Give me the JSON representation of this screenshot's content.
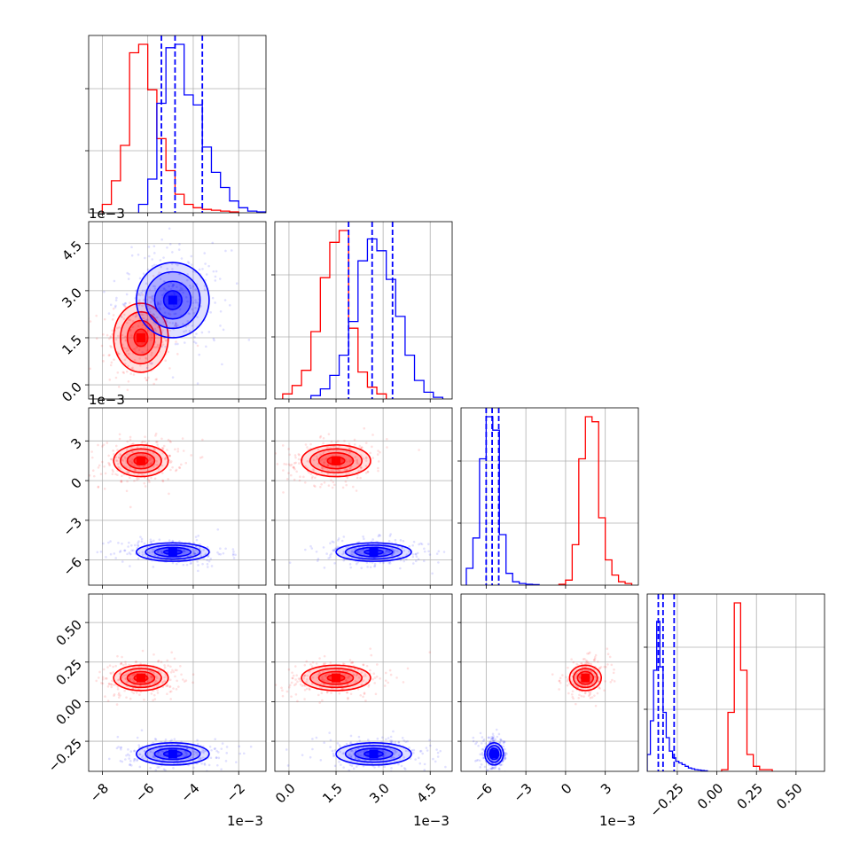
{
  "colors": {
    "red": "#ff0000",
    "blue": "#0000ff",
    "grid": "#b0b0b0",
    "axis": "#000000",
    "background": "#ffffff"
  },
  "chart_data": {
    "type": "corner",
    "grid": true,
    "n_params": 4,
    "offset_text": [
      "1e−3",
      "1e−3",
      "1e−3"
    ],
    "x_ticks": [
      [
        "−8",
        "−6",
        "−4",
        "−2"
      ],
      [
        "0.0",
        "1.5",
        "3.0",
        "4.5"
      ],
      [
        "−6",
        "−3",
        "0",
        "3"
      ],
      [
        "−0.25",
        "0.00",
        "0.25",
        "0.50"
      ]
    ],
    "y_ticks": [
      [],
      [
        "0.0",
        "1.5",
        "3.0",
        "4.5"
      ],
      [
        "−6",
        "−3",
        "0",
        "3"
      ],
      [
        "−0.25",
        "0.00",
        "0.25",
        "0.50"
      ]
    ],
    "ranges": [
      [
        -8.6,
        -0.8
      ],
      [
        -0.45,
        5.2
      ],
      [
        -7.9,
        5.5
      ],
      [
        -0.44,
        0.68
      ]
    ],
    "tick_values": [
      [
        -8,
        -6,
        -4,
        -2
      ],
      [
        0.0,
        1.5,
        3.0,
        4.5
      ],
      [
        -6,
        -3,
        0,
        3
      ],
      [
        -0.25,
        0.0,
        0.25,
        0.5
      ]
    ],
    "diag_yticks_frac": [
      0.35,
      0.7
    ],
    "series": [
      {
        "color": "red",
        "means": [
          -6.3,
          1.5,
          1.5,
          0.15
        ],
        "sigmas": [
          0.6,
          0.55,
          0.6,
          0.04
        ],
        "histograms": [
          {
            "edges": [
              -8.0,
              -7.6,
              -7.2,
              -6.8,
              -6.4,
              -6.0,
              -5.6,
              -5.2,
              -4.8,
              -4.4,
              -4.0,
              -3.6,
              -3.2,
              -2.8,
              -2.4,
              -2.0
            ],
            "counts": [
              0.05,
              0.19,
              0.4,
              0.95,
              1.0,
              0.73,
              0.44,
              0.25,
              0.11,
              0.05,
              0.03,
              0.02,
              0.015,
              0.01,
              0.005
            ]
          },
          {
            "edges": [
              -0.2,
              0.1,
              0.4,
              0.7,
              1.0,
              1.3,
              1.6,
              1.9,
              2.2,
              2.5,
              2.8,
              3.1
            ],
            "counts": [
              0.03,
              0.08,
              0.17,
              0.4,
              0.72,
              0.93,
              1.0,
              0.42,
              0.16,
              0.07,
              0.03
            ]
          },
          {
            "edges": [
              -0.5,
              0.0,
              0.5,
              1.0,
              1.5,
              2.0,
              2.5,
              3.0,
              3.5,
              4.0,
              4.5,
              5.0
            ],
            "counts": [
              0.005,
              0.03,
              0.24,
              0.75,
              1.0,
              0.97,
              0.4,
              0.15,
              0.06,
              0.02,
              0.01
            ]
          },
          {
            "edges": [
              0.03,
              0.07,
              0.11,
              0.15,
              0.19,
              0.23,
              0.27,
              0.31,
              0.35
            ],
            "counts": [
              0.01,
              0.35,
              1.0,
              0.6,
              0.1,
              0.03,
              0.01,
              0.01
            ]
          }
        ]
      },
      {
        "color": "blue",
        "means": [
          -4.9,
          2.7,
          -5.4,
          -0.33
        ],
        "sigmas": [
          0.8,
          0.6,
          0.35,
          0.035
        ],
        "quantiles": [
          [
            -5.4,
            -4.8,
            -3.6
          ],
          [
            1.9,
            2.65,
            3.3
          ],
          [
            -6.0,
            -5.55,
            -5.05
          ],
          [
            -0.37,
            -0.34,
            -0.27
          ]
        ],
        "histograms": [
          {
            "edges": [
              -6.4,
              -6.0,
              -5.6,
              -5.2,
              -4.8,
              -4.4,
              -4.0,
              -3.6,
              -3.2,
              -2.8,
              -2.4,
              -2.0,
              -1.6,
              -1.2,
              -0.8
            ],
            "counts": [
              0.05,
              0.2,
              0.65,
              0.98,
              1.0,
              0.7,
              0.64,
              0.39,
              0.24,
              0.15,
              0.07,
              0.03,
              0.01,
              0.005
            ]
          },
          {
            "edges": [
              0.7,
              1.0,
              1.3,
              1.6,
              1.9,
              2.2,
              2.5,
              2.8,
              3.1,
              3.4,
              3.7,
              4.0,
              4.3,
              4.6,
              4.9
            ],
            "counts": [
              0.02,
              0.06,
              0.14,
              0.26,
              0.46,
              0.82,
              0.95,
              0.88,
              0.71,
              0.49,
              0.26,
              0.11,
              0.04,
              0.01
            ]
          },
          {
            "edges": [
              -7.5,
              -7.0,
              -6.5,
              -6.0,
              -5.5,
              -5.0,
              -4.5,
              -4.0,
              -3.5,
              -3.0,
              -2.5,
              -2.0
            ],
            "counts": [
              0.1,
              0.28,
              0.75,
              1.0,
              0.92,
              0.3,
              0.07,
              0.02,
              0.01,
              0.005,
              0.003
            ]
          },
          {
            "edges": [
              -0.44,
              -0.42,
              -0.4,
              -0.38,
              -0.36,
              -0.34,
              -0.32,
              -0.3,
              -0.28,
              -0.26,
              -0.24,
              -0.22,
              -0.2,
              -0.18,
              -0.16,
              -0.14,
              -0.12,
              -0.1,
              -0.08,
              -0.06
            ],
            "counts": [
              0.1,
              0.3,
              0.6,
              0.89,
              0.62,
              0.35,
              0.2,
              0.12,
              0.08,
              0.06,
              0.05,
              0.04,
              0.03,
              0.02,
              0.015,
              0.01,
              0.008,
              0.005,
              0.003
            ]
          }
        ]
      }
    ],
    "contour_levels": [
      0.5,
      1.0,
      1.5,
      2.0
    ]
  }
}
